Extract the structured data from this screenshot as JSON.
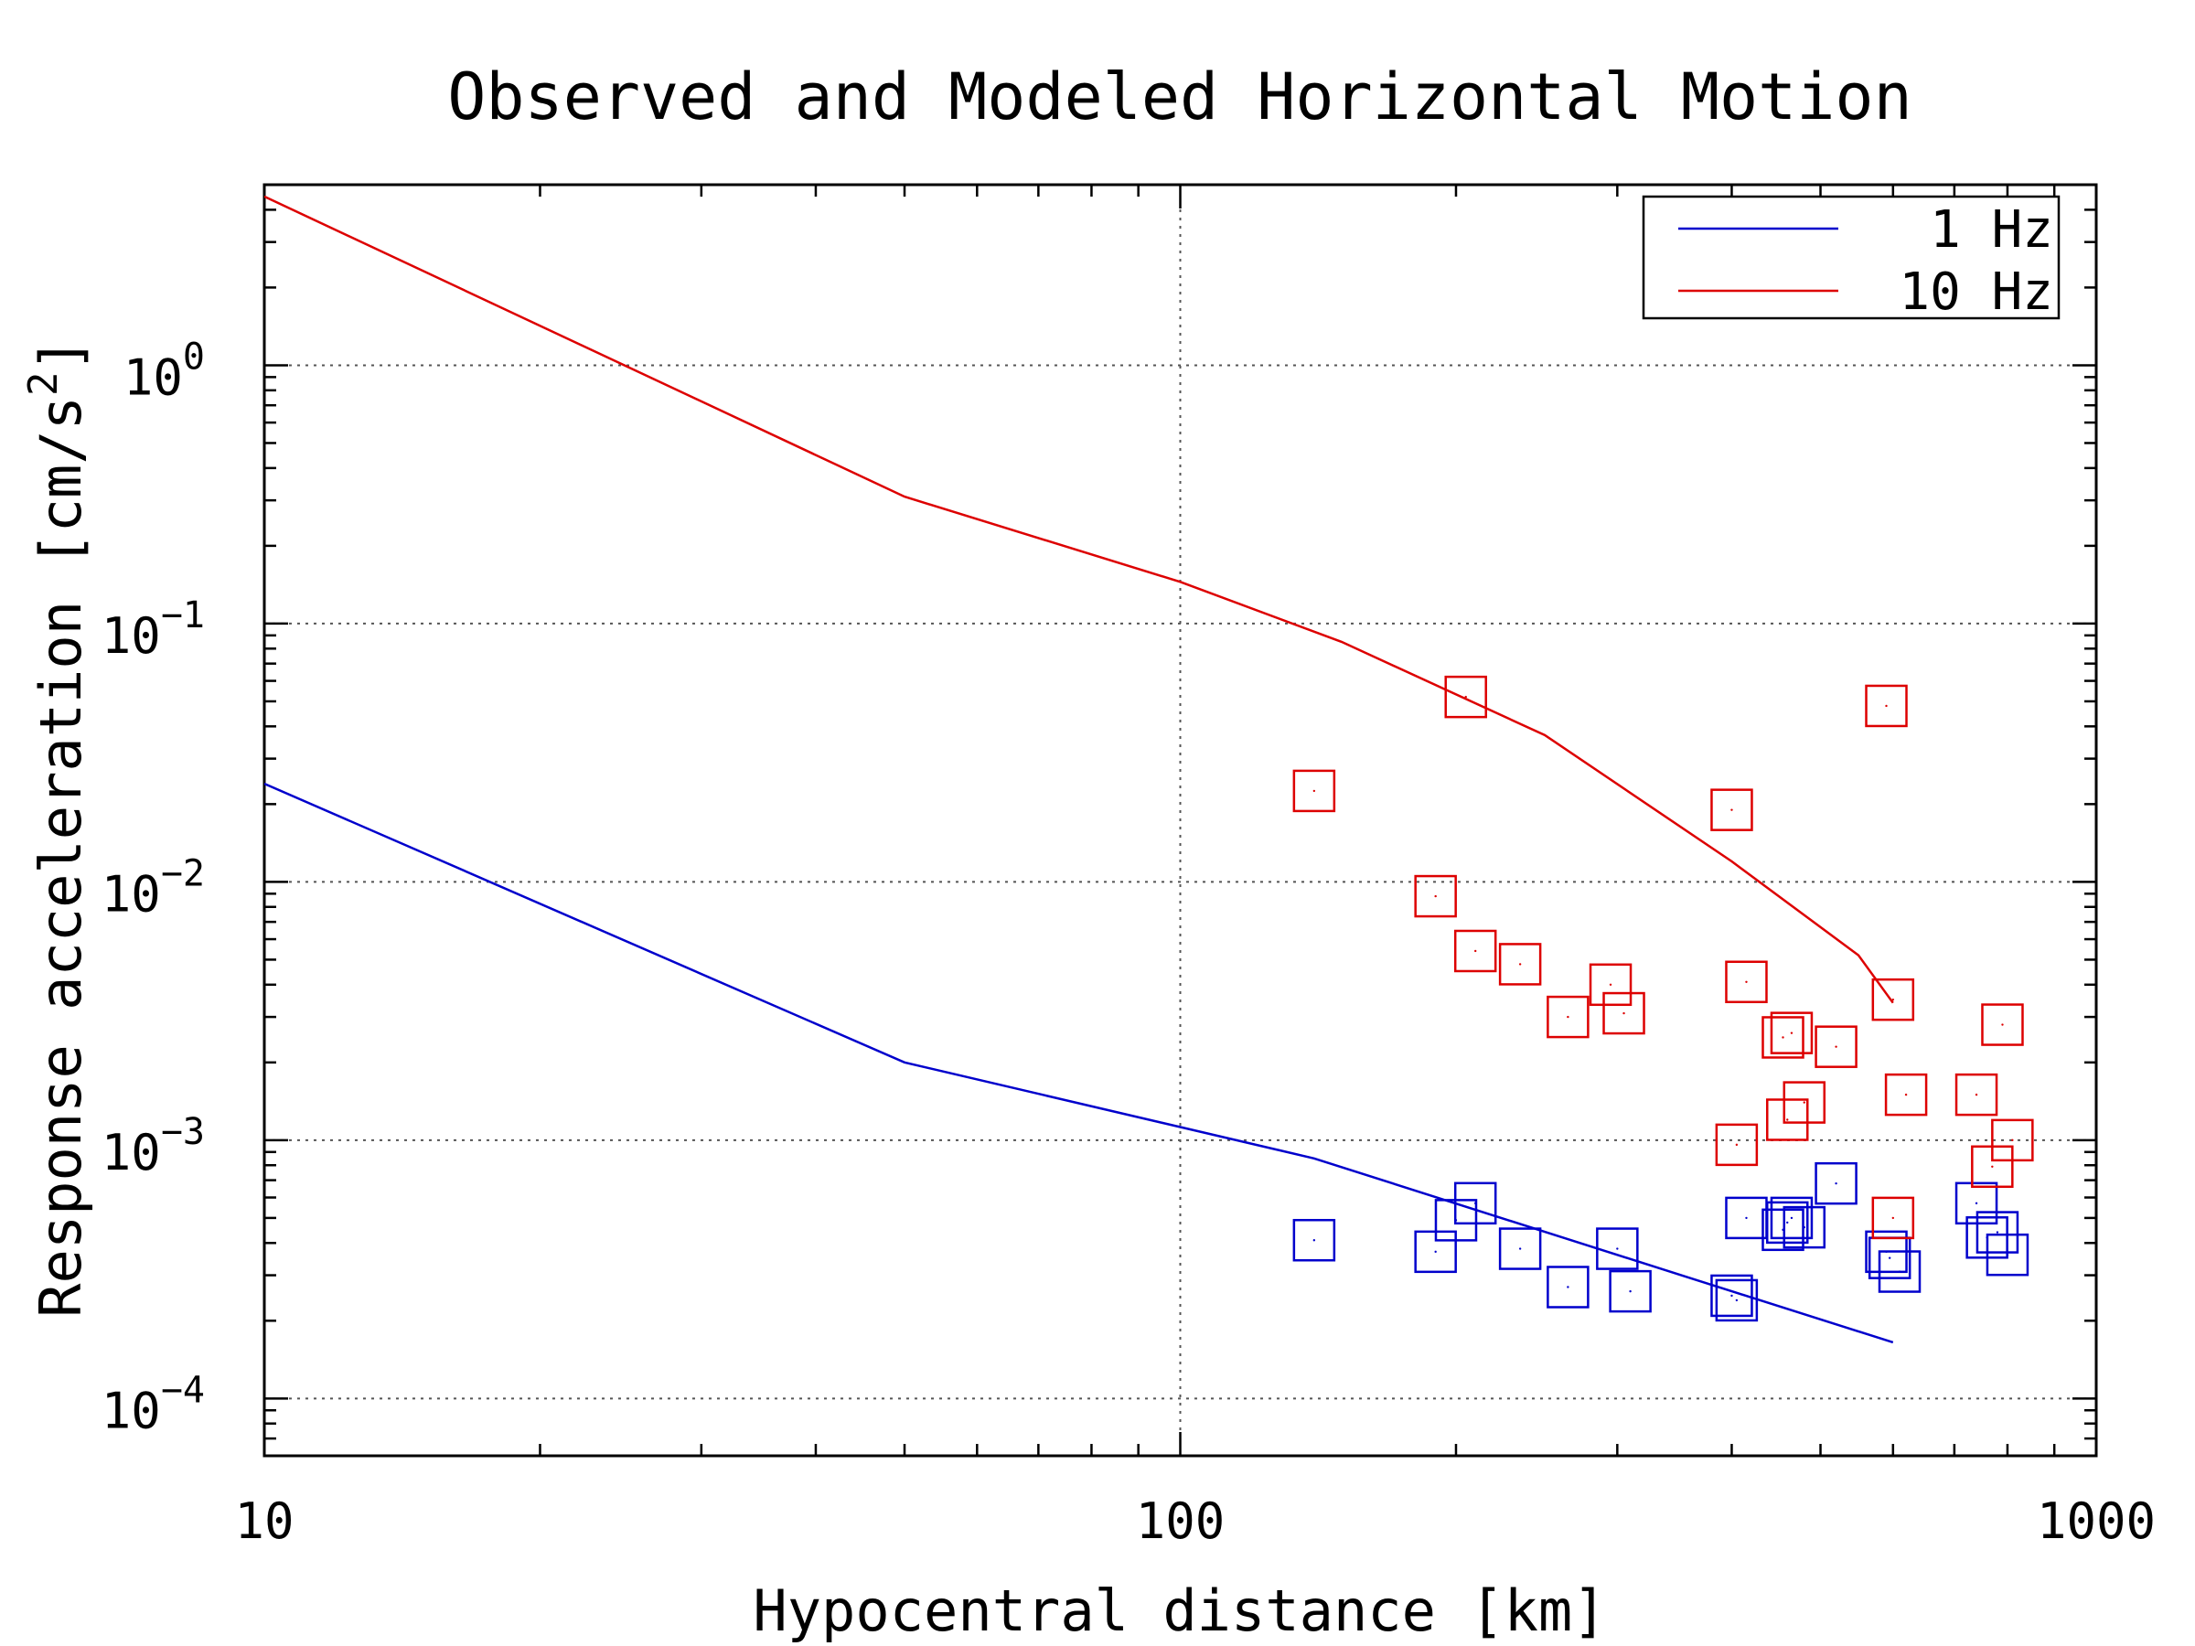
{
  "chart_data": {
    "type": "scatter",
    "title": "Observed and Modeled Horizontal Motion",
    "xlabel": "Hypocentral distance [km]",
    "ylabel": "Response acceleration [cm/s^2]",
    "ylabel_base": "Response acceleration [cm/s",
    "ylabel_sup": "2",
    "ylabel_close": "]",
    "xscale": "log",
    "yscale": "log",
    "xlim": [
      10,
      1000
    ],
    "ylim": [
      6e-05,
      5
    ],
    "x_ticks": [
      {
        "value": 10,
        "label": "10"
      },
      {
        "value": 100,
        "label": "100"
      },
      {
        "value": 1000,
        "label": "1000"
      }
    ],
    "y_ticks": [
      {
        "value": 1,
        "base": "10",
        "exp": "0"
      },
      {
        "value": 0.1,
        "base": "10",
        "exp": "−1"
      },
      {
        "value": 0.01,
        "base": "10",
        "exp": "−2"
      },
      {
        "value": 0.001,
        "base": "10",
        "exp": "−3"
      },
      {
        "value": 0.0001,
        "base": "10",
        "exp": "−4"
      }
    ],
    "grid": true,
    "legend_position": "top-right",
    "legend": [
      {
        "label": "1 Hz",
        "color": "#0000cc"
      },
      {
        "label": "10 Hz",
        "color": "#dd0000"
      }
    ],
    "series": [
      {
        "name": "1 Hz",
        "kind": "line",
        "color": "#0000cc",
        "x": [
          10,
          50,
          140,
          400,
          600
        ],
        "y": [
          0.024,
          0.002,
          0.00085,
          0.00026,
          0.000165
        ]
      },
      {
        "name": "10 Hz",
        "kind": "line",
        "color": "#dd0000",
        "x": [
          10,
          50,
          100,
          150,
          250,
          400,
          550,
          600
        ],
        "y": [
          4.5,
          0.31,
          0.145,
          0.085,
          0.037,
          0.012,
          0.0052,
          0.0034
        ]
      },
      {
        "name": "1 Hz",
        "kind": "scatter",
        "color": "#0000cc",
        "x": [
          140,
          190,
          200,
          210,
          235,
          265,
          300,
          310,
          400,
          405,
          415,
          455,
          460,
          465,
          480,
          520,
          590,
          595,
          610,
          740,
          760,
          780,
          800
        ],
        "y": [
          0.00041,
          0.00037,
          0.00049,
          0.00057,
          0.00038,
          0.00027,
          0.00038,
          0.00026,
          0.00025,
          0.00024,
          0.0005,
          0.00045,
          0.00048,
          0.0005,
          0.00046,
          0.00068,
          0.00037,
          0.00035,
          0.00031,
          0.00057,
          0.00042,
          0.00044,
          0.00036
        ]
      },
      {
        "name": "10 Hz",
        "kind": "scatter",
        "color": "#dd0000",
        "x": [
          140,
          190,
          205,
          210,
          235,
          265,
          295,
          305,
          400,
          405,
          415,
          455,
          460,
          465,
          480,
          520,
          590,
          600,
          600,
          620,
          740,
          770,
          790,
          810
        ],
        "y": [
          0.0225,
          0.0088,
          0.052,
          0.0054,
          0.0048,
          0.003,
          0.004,
          0.0031,
          0.019,
          0.00096,
          0.0041,
          0.0025,
          0.0012,
          0.0026,
          0.0014,
          0.0023,
          0.048,
          0.0035,
          0.0005,
          0.0015,
          0.0015,
          0.00079,
          0.0028,
          0.001
        ]
      }
    ]
  }
}
